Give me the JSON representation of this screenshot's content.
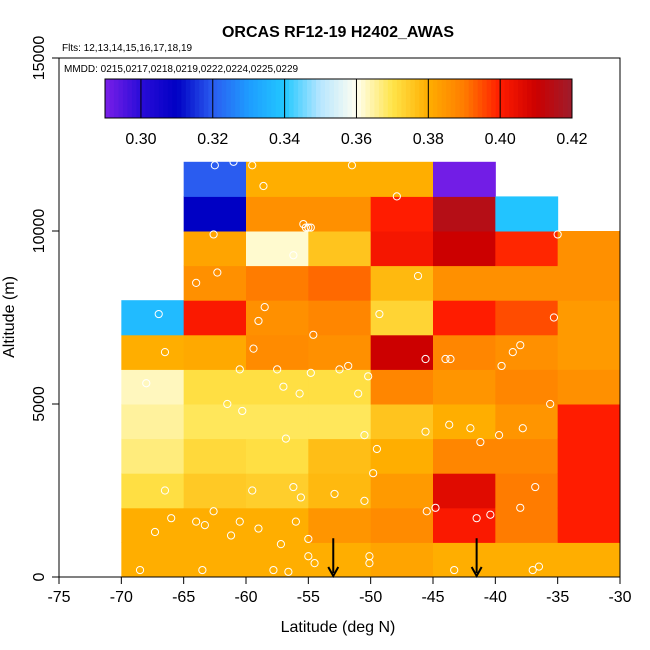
{
  "chart_data": {
    "type": "heatmap",
    "title": "ORCAS RF12-19 H2402_AWAS",
    "flights_label": "Flts: 12,13,14,15,16,17,18,19",
    "dates_label": "MMDD: 0215,0217,0218,0219,0222,0224,0225,0229",
    "xlabel": "Latitude (deg N)",
    "ylabel": "Altitude (m)",
    "xlim": [
      -75,
      -30
    ],
    "ylim": [
      0,
      15000
    ],
    "xticks": [
      -75,
      -70,
      -65,
      -60,
      -55,
      -50,
      -45,
      -40,
      -35,
      -30
    ],
    "yticks": [
      0,
      5000,
      10000,
      15000
    ],
    "colorbar": {
      "min": 0.29,
      "max": 0.42,
      "ticks": [
        0.3,
        0.32,
        0.34,
        0.36,
        0.38,
        0.4,
        0.42
      ],
      "tick_labels": [
        "0.30",
        "0.32",
        "0.34",
        "0.36",
        "0.38",
        "0.40",
        "0.42"
      ],
      "stops": [
        [
          0.29,
          "#7a1fe8"
        ],
        [
          0.3,
          "#2a0cd8"
        ],
        [
          0.31,
          "#0000c4"
        ],
        [
          0.32,
          "#2a5cf0"
        ],
        [
          0.33,
          "#1e9cff"
        ],
        [
          0.34,
          "#22c8ff"
        ],
        [
          0.35,
          "#b8e6ff"
        ],
        [
          0.36,
          "#fffff0"
        ],
        [
          0.37,
          "#ffe44a"
        ],
        [
          0.38,
          "#ffae00"
        ],
        [
          0.39,
          "#ff7c00"
        ],
        [
          0.4,
          "#ff1c00"
        ],
        [
          0.41,
          "#cc0000"
        ],
        [
          0.42,
          "#9e1c2c"
        ]
      ]
    },
    "bin_width_deg": 5,
    "bin_height_m": 1000,
    "cells": [
      {
        "lat": -70,
        "rows": [
          0.38,
          0.38,
          0.371,
          0.367,
          0.365,
          0.363,
          0.38,
          0.337,
          null,
          null,
          null,
          null
        ]
      },
      {
        "lat": -65,
        "rows": [
          0.38,
          0.38,
          0.375,
          0.372,
          0.369,
          0.371,
          0.381,
          0.401,
          0.386,
          0.382,
          0.31,
          0.32
        ]
      },
      {
        "lat": -60,
        "rows": [
          0.38,
          0.38,
          0.374,
          0.371,
          0.369,
          0.371,
          0.387,
          0.386,
          0.39,
          0.362,
          0.386,
          0.38
        ]
      },
      {
        "lat": -55,
        "rows": [
          0.38,
          0.385,
          0.378,
          0.377,
          0.369,
          0.371,
          0.386,
          0.388,
          0.392,
          0.376,
          0.386,
          0.38
        ]
      },
      {
        "lat": -50,
        "rows": [
          0.382,
          0.387,
          0.384,
          0.38,
          0.376,
          0.388,
          0.41,
          0.373,
          0.378,
          0.402,
          0.4,
          0.38
        ]
      },
      {
        "lat": -45,
        "rows": [
          0.38,
          0.401,
          0.406,
          0.388,
          0.38,
          0.385,
          0.388,
          0.4,
          0.386,
          0.41,
          0.415,
          0.291
        ]
      },
      {
        "lat": -40,
        "rows": [
          0.38,
          0.39,
          0.39,
          0.388,
          0.385,
          0.388,
          0.386,
          0.395,
          0.386,
          0.399,
          0.339,
          null
        ]
      },
      {
        "lat": -35,
        "rows": [
          0.38,
          0.4,
          0.4,
          0.4,
          0.4,
          0.386,
          0.384,
          0.384,
          0.386,
          0.386,
          null,
          null
        ]
      }
    ],
    "arrows_lat": [
      -53,
      -41.5
    ],
    "observations": [
      [
        -68.5,
        200
      ],
      [
        -67.3,
        1300
      ],
      [
        -66,
        1700
      ],
      [
        -64,
        1600
      ],
      [
        -66.5,
        2500
      ],
      [
        -68,
        5600
      ],
      [
        -66.5,
        6500
      ],
      [
        -67,
        7600
      ],
      [
        -64,
        8500
      ],
      [
        -63.5,
        200
      ],
      [
        -63.3,
        1500
      ],
      [
        -62.6,
        1900
      ],
      [
        -61.2,
        1200
      ],
      [
        -60.5,
        1600
      ],
      [
        -59.5,
        2500
      ],
      [
        -59,
        1400
      ],
      [
        -62.5,
        11900
      ],
      [
        -61,
        12000
      ],
      [
        -59.5,
        11900
      ],
      [
        -58.6,
        11300
      ],
      [
        -62.6,
        9900
      ],
      [
        -62.3,
        8800
      ],
      [
        -61.5,
        5000
      ],
      [
        -60.3,
        4800
      ],
      [
        -60.5,
        6000
      ],
      [
        -59.4,
        6600
      ],
      [
        -59,
        7400
      ],
      [
        -58.5,
        7800
      ],
      [
        -57.5,
        6000
      ],
      [
        -57,
        5500
      ],
      [
        -56.8,
        4000
      ],
      [
        -56.2,
        2600
      ],
      [
        -55.6,
        2300
      ],
      [
        -57.8,
        200
      ],
      [
        -56.6,
        150
      ],
      [
        -55,
        600
      ],
      [
        -54.5,
        400
      ],
      [
        -57.2,
        950
      ],
      [
        -56,
        1600
      ],
      [
        -55,
        1100
      ],
      [
        -54.8,
        5900
      ],
      [
        -54.6,
        7000
      ],
      [
        -55.7,
        5300
      ],
      [
        -56.2,
        9300
      ],
      [
        -55.4,
        10200
      ],
      [
        -55.2,
        10100
      ],
      [
        -55,
        10100
      ],
      [
        -54.8,
        10100
      ],
      [
        -52.9,
        2400
      ],
      [
        -52.5,
        6000
      ],
      [
        -51.8,
        6100
      ],
      [
        -51,
        5300
      ],
      [
        -50.5,
        4100
      ],
      [
        -50.2,
        5800
      ],
      [
        -49.8,
        3000
      ],
      [
        -49.5,
        3700
      ],
      [
        -50.5,
        2200
      ],
      [
        -50.1,
        600
      ],
      [
        -50.1,
        400
      ],
      [
        -51.5,
        11900
      ],
      [
        -49.3,
        7600
      ],
      [
        -47.9,
        11000
      ],
      [
        -46.2,
        8700
      ],
      [
        -45.6,
        6300
      ],
      [
        -44,
        6300
      ],
      [
        -43.6,
        6300
      ],
      [
        -44.8,
        2000
      ],
      [
        -45.5,
        1900
      ],
      [
        -45.6,
        4200
      ],
      [
        -43.7,
        4400
      ],
      [
        -43.3,
        200
      ],
      [
        -42,
        4300
      ],
      [
        -41.2,
        3900
      ],
      [
        -41.5,
        1700
      ],
      [
        -40.4,
        1800
      ],
      [
        -39.7,
        4100
      ],
      [
        -38.6,
        6500
      ],
      [
        -38,
        6700
      ],
      [
        -39.5,
        6100
      ],
      [
        -37.8,
        4300
      ],
      [
        -36.8,
        2600
      ],
      [
        -35.6,
        5000
      ],
      [
        -35.3,
        7500
      ],
      [
        -35,
        9900
      ],
      [
        -37,
        200
      ],
      [
        -36.5,
        300
      ],
      [
        -38,
        2000
      ]
    ]
  }
}
